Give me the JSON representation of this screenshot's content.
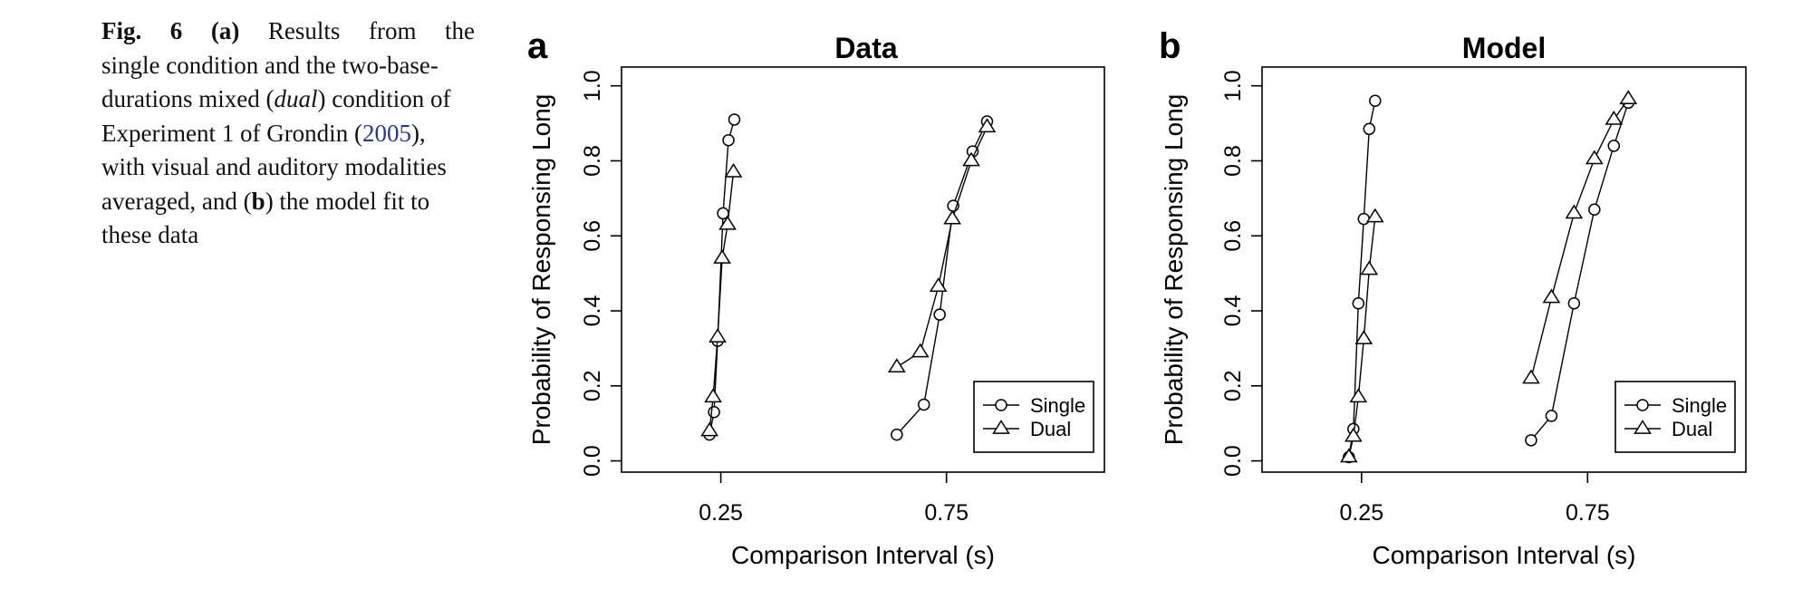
{
  "caption": {
    "fig_label": "Fig. 6",
    "part_a": "(a)",
    "text_1": "Results from the",
    "text_2": "single condition and the two-base-durations mixed (",
    "dual": "dual",
    "text_3": ") condition of Experiment 1 of Grondin (",
    "ref_year": "2005",
    "text_4": "), with visual and auditory modalities averaged, and (",
    "part_b_letter": "b",
    "text_5": ") the model fit to these data"
  },
  "chart_data": [
    {
      "panel_label": "a",
      "type": "line",
      "title": "Data",
      "xlabel": "Comparison Interval (s)",
      "ylabel": "Probability of Responsing Long",
      "xticks": [
        {
          "value": 0.25,
          "label": "0.25"
        },
        {
          "value": 0.75,
          "label": "0.75"
        }
      ],
      "yticks": [
        {
          "value": 0.0,
          "label": "0.0"
        },
        {
          "value": 0.2,
          "label": "0.2"
        },
        {
          "value": 0.4,
          "label": "0.4"
        },
        {
          "value": 0.6,
          "label": "0.6"
        },
        {
          "value": 0.8,
          "label": "0.8"
        },
        {
          "value": 1.0,
          "label": "1.0"
        }
      ],
      "xlim": [
        0.03,
        1.1
      ],
      "ylim": [
        -0.03,
        1.05
      ],
      "grid": false,
      "legend": {
        "position": "bottom-right",
        "entries": [
          "Single",
          "Dual"
        ]
      },
      "series": [
        {
          "name": "Single",
          "marker": "circle",
          "groups": [
            [
              [
                0.225,
                0.07
              ],
              [
                0.235,
                0.13
              ],
              [
                0.243,
                0.32
              ],
              [
                0.255,
                0.66
              ],
              [
                0.267,
                0.855
              ],
              [
                0.28,
                0.91
              ]
            ],
            [
              [
                0.64,
                0.07
              ],
              [
                0.7,
                0.15
              ],
              [
                0.735,
                0.39
              ],
              [
                0.765,
                0.68
              ],
              [
                0.808,
                0.825
              ],
              [
                0.84,
                0.905
              ]
            ]
          ]
        },
        {
          "name": "Dual",
          "marker": "triangle",
          "groups": [
            [
              [
                0.225,
                0.08
              ],
              [
                0.233,
                0.17
              ],
              [
                0.243,
                0.33
              ],
              [
                0.253,
                0.54
              ],
              [
                0.265,
                0.63
              ],
              [
                0.278,
                0.77
              ]
            ],
            [
              [
                0.64,
                0.25
              ],
              [
                0.692,
                0.29
              ],
              [
                0.732,
                0.465
              ],
              [
                0.763,
                0.645
              ],
              [
                0.805,
                0.8
              ],
              [
                0.84,
                0.89
              ]
            ]
          ]
        }
      ]
    },
    {
      "panel_label": "b",
      "type": "line",
      "title": "Model",
      "xlabel": "Comparison Interval (s)",
      "ylabel": "Probability of Responsing Long",
      "xticks": [
        {
          "value": 0.25,
          "label": "0.25"
        },
        {
          "value": 0.75,
          "label": "0.75"
        }
      ],
      "yticks": [
        {
          "value": 0.0,
          "label": "0.0"
        },
        {
          "value": 0.2,
          "label": "0.2"
        },
        {
          "value": 0.4,
          "label": "0.4"
        },
        {
          "value": 0.6,
          "label": "0.6"
        },
        {
          "value": 0.8,
          "label": "0.8"
        },
        {
          "value": 1.0,
          "label": "1.0"
        }
      ],
      "xlim": [
        0.03,
        1.1
      ],
      "ylim": [
        -0.03,
        1.05
      ],
      "grid": false,
      "legend": {
        "position": "bottom-right",
        "entries": [
          "Single",
          "Dual"
        ]
      },
      "series": [
        {
          "name": "Single",
          "marker": "circle",
          "groups": [
            [
              [
                0.222,
                0.01
              ],
              [
                0.232,
                0.085
              ],
              [
                0.243,
                0.42
              ],
              [
                0.255,
                0.645
              ],
              [
                0.267,
                0.885
              ],
              [
                0.28,
                0.96
              ]
            ],
            [
              [
                0.625,
                0.055
              ],
              [
                0.67,
                0.12
              ],
              [
                0.72,
                0.42
              ],
              [
                0.765,
                0.67
              ],
              [
                0.808,
                0.84
              ],
              [
                0.84,
                0.955
              ]
            ]
          ]
        },
        {
          "name": "Dual",
          "marker": "triangle",
          "groups": [
            [
              [
                0.222,
                0.01
              ],
              [
                0.232,
                0.065
              ],
              [
                0.243,
                0.17
              ],
              [
                0.255,
                0.325
              ],
              [
                0.267,
                0.51
              ],
              [
                0.28,
                0.65
              ]
            ],
            [
              [
                0.625,
                0.22
              ],
              [
                0.67,
                0.435
              ],
              [
                0.72,
                0.66
              ],
              [
                0.765,
                0.805
              ],
              [
                0.808,
                0.91
              ],
              [
                0.84,
                0.965
              ]
            ]
          ]
        }
      ]
    }
  ]
}
